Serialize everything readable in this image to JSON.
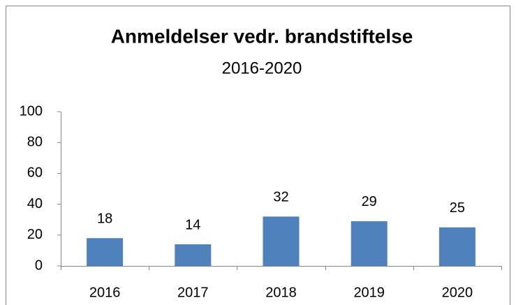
{
  "chart_data": {
    "type": "bar",
    "title": "Anmeldelser vedr. brandstiftelse",
    "subtitle": "2016-2020",
    "categories": [
      "2016",
      "2017",
      "2018",
      "2019",
      "2020"
    ],
    "values": [
      18,
      14,
      32,
      29,
      25
    ],
    "color": "#4f81bd",
    "ylim": [
      0,
      100
    ],
    "yticks": [
      0,
      20,
      40,
      60,
      80,
      100
    ],
    "grid": false,
    "data_labels": true
  }
}
